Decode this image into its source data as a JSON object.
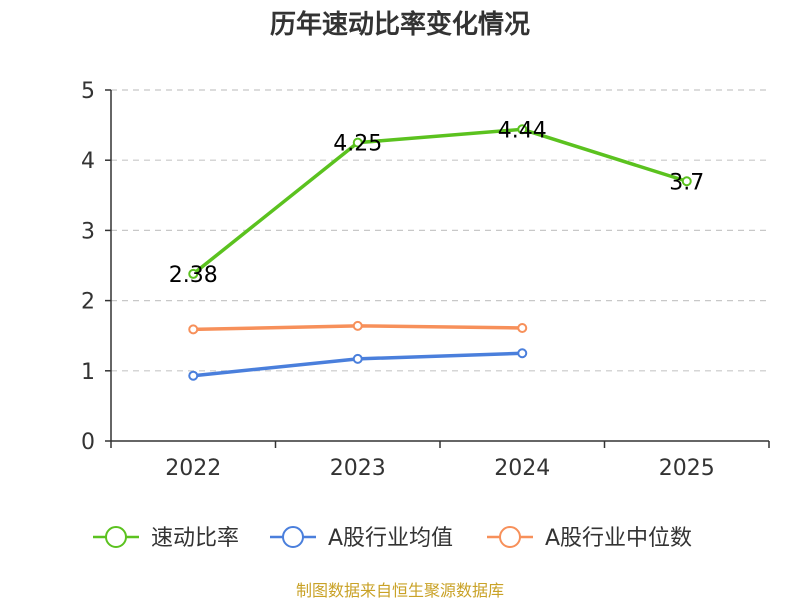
{
  "chart_data": {
    "type": "line",
    "title": "历年速动比率变化情况",
    "xlabel": "",
    "ylabel": "",
    "categories": [
      "2022",
      "2023",
      "2024",
      "2025"
    ],
    "ylim": [
      0,
      5
    ],
    "yticks": [
      "0",
      "1",
      "2",
      "3",
      "4",
      "5"
    ],
    "grid": true,
    "legend_position": "bottom-center",
    "series": [
      {
        "name": "速动比率",
        "color": "#5bc21f",
        "values": [
          2.38,
          4.25,
          4.44,
          3.7
        ],
        "labels": [
          "2.38",
          "4.25",
          "4.44",
          "3.7"
        ]
      },
      {
        "name": "A股行业均值",
        "color": "#4a7fdc",
        "values": [
          0.93,
          1.17,
          1.25,
          null
        ]
      },
      {
        "name": "A股行业中位数",
        "color": "#f7905a",
        "values": [
          1.59,
          1.64,
          1.61,
          null
        ]
      }
    ]
  },
  "source": {
    "text": "制图数据来自恒生聚源数据库",
    "color": "#c9a227"
  }
}
